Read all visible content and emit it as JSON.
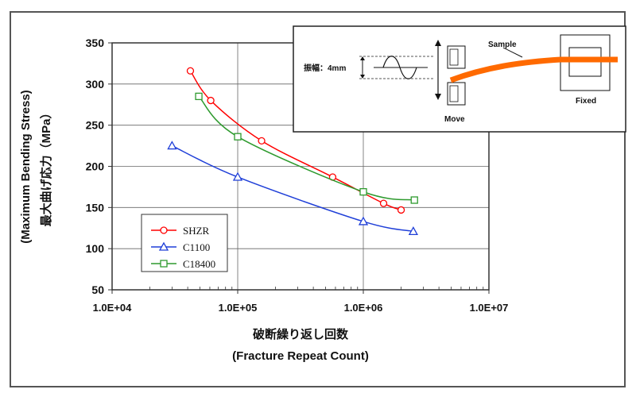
{
  "figure": {
    "ylabel_jp": "最大曲げ応力（MPa）",
    "ylabel_en": "(Maximum Bending Stress)",
    "xlabel_jp": "破断繰り返し回数",
    "xlabel_en": "(Fracture Repeat Count)"
  },
  "inset": {
    "amplitude_label": "振幅：4mm",
    "sample_label": "Sample",
    "move_label": "Move",
    "fixed_label": "Fixed"
  },
  "colors": {
    "shzr": "#ff0000",
    "c1100": "#1f3fd8",
    "c18400": "#2e9a2e",
    "sample": "#ff6a00"
  },
  "chart_data": {
    "type": "line",
    "xscale": "log",
    "xlim": [
      10000,
      10000000
    ],
    "ylim": [
      50,
      350
    ],
    "x_tick_labels": [
      "1.0E+04",
      "1.0E+05",
      "1.0E+06",
      "1.0E+07"
    ],
    "y_tick_labels": [
      "50",
      "100",
      "150",
      "200",
      "250",
      "300",
      "350"
    ],
    "grid": true,
    "legend_position": "bottom-left",
    "xlabel": "破断繰り返し回数",
    "ylabel": "最大曲げ応力（MPa）",
    "series": [
      {
        "name": "SHZR",
        "marker": "circle",
        "color": "#ff0000",
        "points": [
          [
            42000,
            316
          ],
          [
            61000,
            280
          ],
          [
            155000,
            231
          ],
          [
            570000,
            187
          ],
          [
            1450000,
            155
          ],
          [
            2000000,
            147
          ]
        ]
      },
      {
        "name": "C1100",
        "marker": "triangle",
        "color": "#1f3fd8",
        "points": [
          [
            30000,
            225
          ],
          [
            100000,
            187
          ],
          [
            1000000,
            133
          ],
          [
            2500000,
            121
          ]
        ]
      },
      {
        "name": "C18400",
        "marker": "square",
        "color": "#2e9a2e",
        "points": [
          [
            49000,
            285
          ],
          [
            100000,
            236
          ],
          [
            1000000,
            169
          ],
          [
            2550000,
            159
          ]
        ]
      }
    ]
  }
}
